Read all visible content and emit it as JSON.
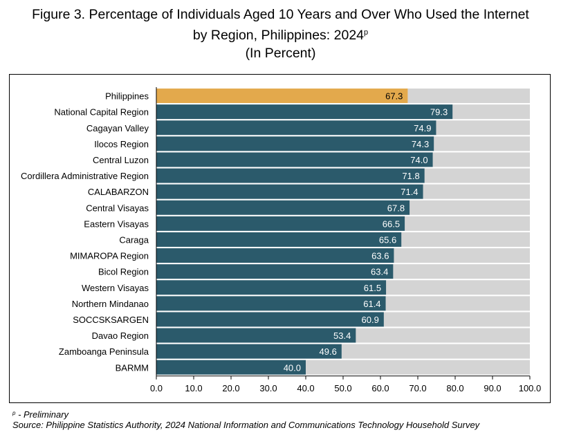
{
  "title": {
    "line1": "Figure 3. Percentage of Individuals Aged 10 Years and Over Who Used the Internet",
    "line2": "by Region, Philippines: 2024",
    "line2_sup": "p",
    "line3": "(In Percent)"
  },
  "footnote": {
    "marker": "p",
    "text": " - Preliminary"
  },
  "source": "Source: Philippine Statistics Authority, 2024 National Information and Communications Technology Household Survey",
  "colors": {
    "highlight_bar": "#E3A94C",
    "region_bar": "#2B5A6B",
    "remainder_bar": "#D4D4D4",
    "label_on_highlight": "#000000",
    "label_on_region": "#FFFFFF"
  },
  "chart_data": {
    "type": "bar",
    "orientation": "horizontal",
    "stacked_remainder_to": 100,
    "categories": [
      "Philippines",
      "National Capital Region",
      "Cagayan Valley",
      "Ilocos Region",
      "Central Luzon",
      "Cordillera Administrative Region",
      "CALABARZON",
      "Central Visayas",
      "Eastern Visayas",
      "Caraga",
      "MIMAROPA Region",
      "Bicol Region",
      "Western Visayas",
      "Northern Mindanao",
      "SOCCSKSARGEN",
      "Davao Region",
      "Zamboanga Peninsula",
      "BARMM"
    ],
    "values": [
      67.3,
      79.3,
      74.9,
      74.3,
      74.0,
      71.8,
      71.4,
      67.8,
      66.5,
      65.6,
      63.6,
      63.4,
      61.5,
      61.4,
      60.9,
      53.4,
      49.6,
      40.0
    ],
    "highlight_category": "Philippines",
    "xlim": [
      0,
      100
    ],
    "xticks": [
      0,
      10,
      20,
      30,
      40,
      50,
      60,
      70,
      80,
      90,
      100
    ],
    "tick_decimals": 1,
    "value_decimals": 1,
    "grid": false
  }
}
